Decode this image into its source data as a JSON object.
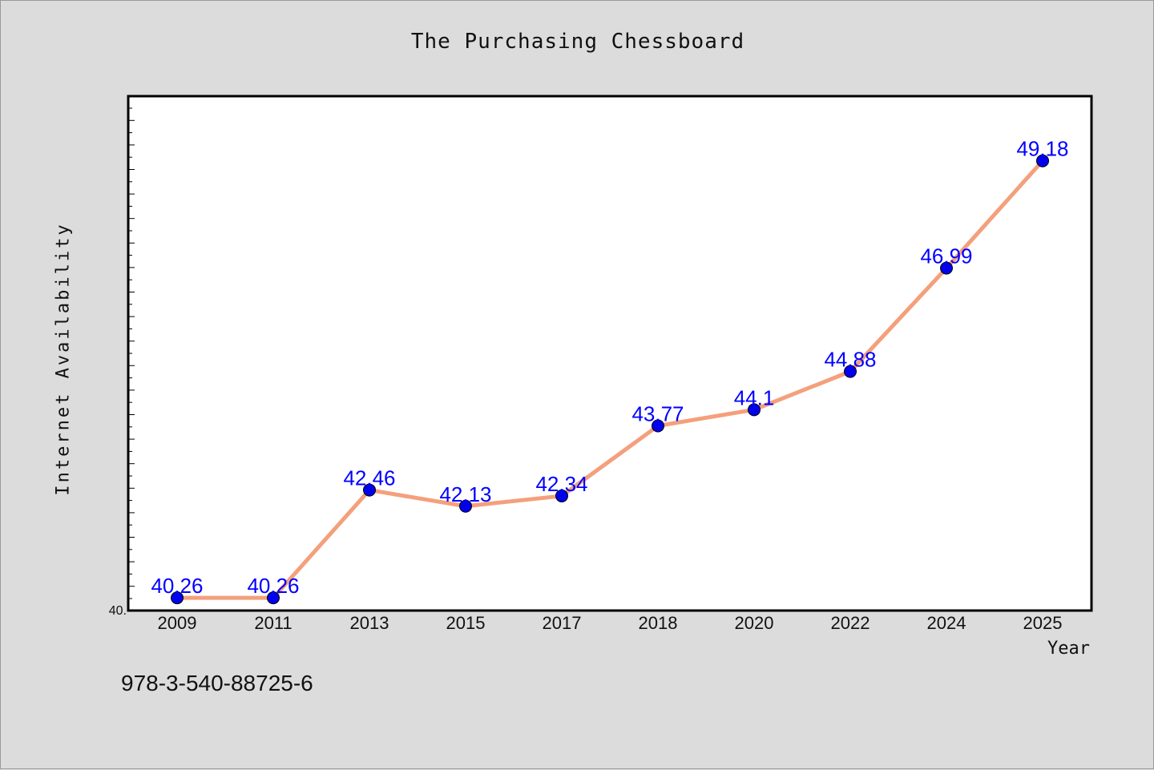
{
  "title": "The Purchasing Chessboard",
  "footer_code": "978-3-540-88725-6",
  "chart_data": {
    "type": "line",
    "title": "The Purchasing Chessboard",
    "xlabel": "Year",
    "ylabel": "Internet Availability",
    "categories": [
      "2009",
      "2011",
      "2013",
      "2015",
      "2017",
      "2018",
      "2020",
      "2022",
      "2024",
      "2025"
    ],
    "series": [
      {
        "values": [
          40.26,
          40.26,
          42.46,
          42.13,
          42.34,
          43.77,
          44.1,
          44.88,
          46.99,
          49.18
        ]
      }
    ],
    "data_labels": [
      "40.26",
      "40.26",
      "42.46",
      "42.13",
      "42.34",
      "43.77",
      "44.1",
      "44.88",
      "46.99",
      "49.18"
    ],
    "y_tick_label": "40.",
    "ylim": [
      40.0,
      50.5
    ],
    "grid": false,
    "legend": "none",
    "colors": {
      "line": "#f4a07c",
      "marker": "#0000ee",
      "data_label": "#0000ff",
      "plot_background": "#ffffff",
      "figure_background": "#dcdcdc"
    }
  }
}
